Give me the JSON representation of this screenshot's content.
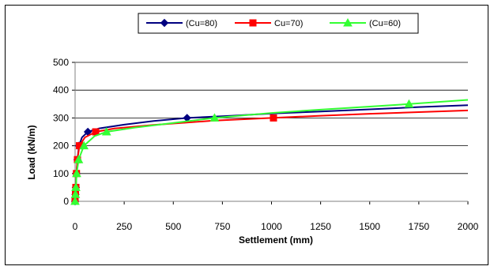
{
  "chart_data": {
    "type": "line",
    "title": "",
    "xlabel": "Settlement (mm)",
    "ylabel": "Load (kN/m)",
    "xlim": [
      0,
      2000
    ],
    "ylim": [
      0,
      500
    ],
    "x_ticks": [
      "0",
      "250",
      "500",
      "750",
      "1000",
      "1250",
      "1500",
      "1750",
      "2000"
    ],
    "y_ticks": [
      "0",
      "100",
      "200",
      "300",
      "400",
      "500"
    ],
    "grid": "horizontal",
    "legend_position": "top-center",
    "series": [
      {
        "name": "(Cu=80)",
        "color": "#000080",
        "marker": "diamond",
        "curve": [
          [
            0,
            0
          ],
          [
            2,
            25
          ],
          [
            4,
            50
          ],
          [
            7,
            100
          ],
          [
            12,
            150
          ],
          [
            20,
            200
          ],
          [
            35,
            230
          ],
          [
            65,
            250
          ],
          [
            120,
            262
          ],
          [
            250,
            276
          ],
          [
            400,
            289
          ],
          [
            570,
            300
          ],
          [
            800,
            308
          ],
          [
            1000,
            316
          ],
          [
            1250,
            323
          ],
          [
            1500,
            331
          ],
          [
            1750,
            339
          ],
          [
            2000,
            346
          ]
        ],
        "markers": [
          [
            0,
            0
          ],
          [
            2,
            25
          ],
          [
            4,
            50
          ],
          [
            7,
            100
          ],
          [
            12,
            150
          ],
          [
            20,
            200
          ],
          [
            65,
            250
          ],
          [
            570,
            300
          ]
        ]
      },
      {
        "name": "Cu=70)",
        "color": "#FF0000",
        "marker": "square",
        "curve": [
          [
            0,
            0
          ],
          [
            2,
            25
          ],
          [
            4,
            50
          ],
          [
            7,
            100
          ],
          [
            12,
            150
          ],
          [
            22,
            200
          ],
          [
            50,
            230
          ],
          [
            105,
            250
          ],
          [
            200,
            262
          ],
          [
            400,
            275
          ],
          [
            700,
            290
          ],
          [
            1000,
            300
          ],
          [
            1250,
            308
          ],
          [
            1500,
            315
          ],
          [
            1750,
            321
          ],
          [
            2000,
            327
          ]
        ],
        "markers": [
          [
            0,
            0
          ],
          [
            2,
            25
          ],
          [
            4,
            50
          ],
          [
            7,
            100
          ],
          [
            12,
            150
          ],
          [
            22,
            200
          ],
          [
            105,
            250
          ],
          [
            1010,
            300
          ]
        ]
      },
      {
        "name": "(Cu=60)",
        "color": "#33FF33",
        "marker": "triangle",
        "curve": [
          [
            0,
            0
          ],
          [
            2,
            25
          ],
          [
            4,
            50
          ],
          [
            8,
            100
          ],
          [
            18,
            150
          ],
          [
            45,
            200
          ],
          [
            100,
            235
          ],
          [
            160,
            250
          ],
          [
            300,
            265
          ],
          [
            500,
            282
          ],
          [
            710,
            300
          ],
          [
            1000,
            318
          ],
          [
            1250,
            330
          ],
          [
            1500,
            341
          ],
          [
            1700,
            350
          ],
          [
            2000,
            365
          ]
        ],
        "markers": [
          [
            0,
            0
          ],
          [
            2,
            25
          ],
          [
            4,
            50
          ],
          [
            8,
            100
          ],
          [
            18,
            150
          ],
          [
            45,
            200
          ],
          [
            160,
            250
          ],
          [
            710,
            300
          ],
          [
            1700,
            350
          ]
        ]
      }
    ]
  }
}
